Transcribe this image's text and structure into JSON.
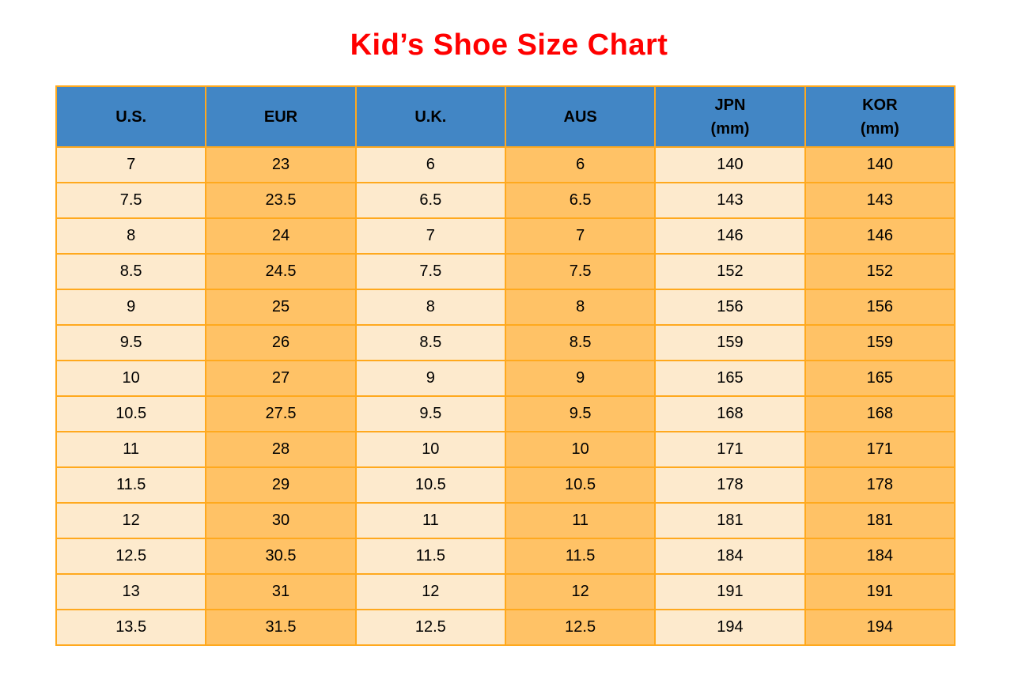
{
  "page": {
    "background": "#ffffff"
  },
  "title": {
    "text": "Kid’s Shoe Size Chart",
    "color": "#ff0000"
  },
  "chart_data": {
    "type": "table",
    "title": "Kid’s Shoe Size Chart",
    "columns": [
      "U.S.",
      "EUR",
      "U.K.",
      "AUS",
      "JPN\n(mm)",
      "KOR\n(mm)"
    ],
    "rows": [
      [
        "7",
        "23",
        "6",
        "6",
        "140",
        "140"
      ],
      [
        "7.5",
        "23.5",
        "6.5",
        "6.5",
        "143",
        "143"
      ],
      [
        "8",
        "24",
        "7",
        "7",
        "146",
        "146"
      ],
      [
        "8.5",
        "24.5",
        "7.5",
        "7.5",
        "152",
        "152"
      ],
      [
        "9",
        "25",
        "8",
        "8",
        "156",
        "156"
      ],
      [
        "9.5",
        "26",
        "8.5",
        "8.5",
        "159",
        "159"
      ],
      [
        "10",
        "27",
        "9",
        "9",
        "165",
        "165"
      ],
      [
        "10.5",
        "27.5",
        "9.5",
        "9.5",
        "168",
        "168"
      ],
      [
        "11",
        "28",
        "10",
        "10",
        "171",
        "171"
      ],
      [
        "11.5",
        "29",
        "10.5",
        "10.5",
        "178",
        "178"
      ],
      [
        "12",
        "30",
        "11",
        "11",
        "181",
        "181"
      ],
      [
        "12.5",
        "30.5",
        "11.5",
        "11.5",
        "184",
        "184"
      ],
      [
        "13",
        "31",
        "12",
        "12",
        "191",
        "191"
      ],
      [
        "13.5",
        "31.5",
        "12.5",
        "12.5",
        "194",
        "194"
      ]
    ],
    "style": {
      "header_bg": "#4286c5",
      "header_text": "#000000",
      "cell_text": "#000000",
      "border_color": "#ffa91e",
      "light_col_bg": "#fdeacd",
      "orange_col_bg": "#ffc266",
      "title_color": "#ff0000"
    },
    "layout": {
      "legend": "none",
      "grid": true,
      "column_striping": "odd columns light, even columns orange"
    }
  }
}
